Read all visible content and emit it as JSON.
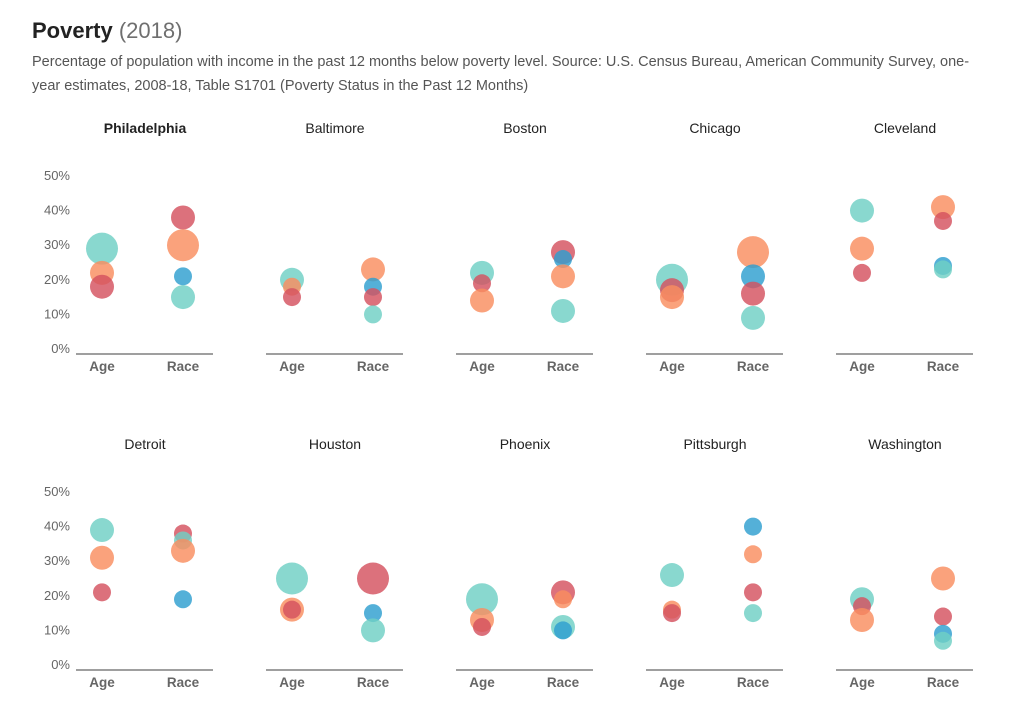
{
  "header": {
    "title": "Poverty",
    "title_year": "(2018)",
    "subtitle": "Percentage of population with income in the past 12 months below poverty level. Source: U.S. Census Bureau, American Community Survey, one-year estimates, 2008-18, Table S1701 (Poverty Status in the Past 12 Months)"
  },
  "colors": {
    "teal": "#6fcfc4",
    "orange": "#f98d5f",
    "red": "#d4525f",
    "blue": "#2e9fcf"
  },
  "chart_data": {
    "type": "scatter",
    "y_tick_labels": [
      "0%",
      "10%",
      "20%",
      "30%",
      "40%",
      "50%"
    ],
    "ylim": [
      0,
      50
    ],
    "categories": [
      "Age",
      "Race"
    ],
    "highlighted_panel": "Philadelphia",
    "panels": [
      {
        "city": "Philadelphia",
        "age": [
          {
            "color": "teal",
            "y": 29,
            "size": "large"
          },
          {
            "color": "orange",
            "y": 22,
            "size": "medium"
          },
          {
            "color": "red",
            "y": 18,
            "size": "medium"
          }
        ],
        "race": [
          {
            "color": "red",
            "y": 38,
            "size": "medium"
          },
          {
            "color": "orange",
            "y": 30,
            "size": "large"
          },
          {
            "color": "blue",
            "y": 21,
            "size": "small"
          },
          {
            "color": "teal",
            "y": 15,
            "size": "medium"
          }
        ]
      },
      {
        "city": "Baltimore",
        "age": [
          {
            "color": "teal",
            "y": 20,
            "size": "medium"
          },
          {
            "color": "orange",
            "y": 18,
            "size": "small"
          },
          {
            "color": "red",
            "y": 15,
            "size": "small"
          }
        ],
        "race": [
          {
            "color": "orange",
            "y": 23,
            "size": "medium"
          },
          {
            "color": "blue",
            "y": 18,
            "size": "small"
          },
          {
            "color": "red",
            "y": 15,
            "size": "small"
          },
          {
            "color": "teal",
            "y": 10,
            "size": "small"
          }
        ]
      },
      {
        "city": "Boston",
        "age": [
          {
            "color": "teal",
            "y": 22,
            "size": "medium"
          },
          {
            "color": "red",
            "y": 19,
            "size": "small"
          },
          {
            "color": "orange",
            "y": 14,
            "size": "medium"
          }
        ],
        "race": [
          {
            "color": "red",
            "y": 28,
            "size": "medium"
          },
          {
            "color": "blue",
            "y": 26,
            "size": "small"
          },
          {
            "color": "orange",
            "y": 21,
            "size": "medium"
          },
          {
            "color": "teal",
            "y": 11,
            "size": "medium"
          }
        ]
      },
      {
        "city": "Chicago",
        "age": [
          {
            "color": "teal",
            "y": 20,
            "size": "large"
          },
          {
            "color": "red",
            "y": 17,
            "size": "medium"
          },
          {
            "color": "orange",
            "y": 15,
            "size": "medium"
          }
        ],
        "race": [
          {
            "color": "orange",
            "y": 28,
            "size": "large"
          },
          {
            "color": "blue",
            "y": 21,
            "size": "medium"
          },
          {
            "color": "red",
            "y": 16,
            "size": "medium"
          },
          {
            "color": "teal",
            "y": 9,
            "size": "medium"
          }
        ]
      },
      {
        "city": "Cleveland",
        "age": [
          {
            "color": "teal",
            "y": 40,
            "size": "medium"
          },
          {
            "color": "orange",
            "y": 29,
            "size": "medium"
          },
          {
            "color": "red",
            "y": 22,
            "size": "small"
          }
        ],
        "race": [
          {
            "color": "orange",
            "y": 41,
            "size": "medium"
          },
          {
            "color": "red",
            "y": 37,
            "size": "small"
          },
          {
            "color": "blue",
            "y": 24,
            "size": "small"
          },
          {
            "color": "teal",
            "y": 23,
            "size": "small"
          }
        ]
      },
      {
        "city": "Detroit",
        "age": [
          {
            "color": "teal",
            "y": 39,
            "size": "medium"
          },
          {
            "color": "orange",
            "y": 31,
            "size": "medium"
          },
          {
            "color": "red",
            "y": 21,
            "size": "small"
          }
        ],
        "race": [
          {
            "color": "red",
            "y": 38,
            "size": "small"
          },
          {
            "color": "teal",
            "y": 36,
            "size": "small"
          },
          {
            "color": "orange",
            "y": 33,
            "size": "medium"
          },
          {
            "color": "blue",
            "y": 19,
            "size": "small"
          }
        ]
      },
      {
        "city": "Houston",
        "age": [
          {
            "color": "teal",
            "y": 25,
            "size": "large"
          },
          {
            "color": "orange",
            "y": 16,
            "size": "medium"
          },
          {
            "color": "red",
            "y": 16,
            "size": "small"
          }
        ],
        "race": [
          {
            "color": "red",
            "y": 25,
            "size": "large"
          },
          {
            "color": "blue",
            "y": 15,
            "size": "small"
          },
          {
            "color": "teal",
            "y": 10,
            "size": "medium"
          }
        ]
      },
      {
        "city": "Phoenix",
        "age": [
          {
            "color": "teal",
            "y": 19,
            "size": "large"
          },
          {
            "color": "orange",
            "y": 13,
            "size": "medium"
          },
          {
            "color": "red",
            "y": 11,
            "size": "small"
          }
        ],
        "race": [
          {
            "color": "red",
            "y": 21,
            "size": "medium"
          },
          {
            "color": "orange",
            "y": 19,
            "size": "small"
          },
          {
            "color": "teal",
            "y": 11,
            "size": "medium"
          },
          {
            "color": "blue",
            "y": 10,
            "size": "small"
          }
        ]
      },
      {
        "city": "Pittsburgh",
        "age": [
          {
            "color": "teal",
            "y": 26,
            "size": "medium"
          },
          {
            "color": "orange",
            "y": 16,
            "size": "small"
          },
          {
            "color": "red",
            "y": 15,
            "size": "small"
          }
        ],
        "race": [
          {
            "color": "blue",
            "y": 40,
            "size": "small"
          },
          {
            "color": "orange",
            "y": 32,
            "size": "small"
          },
          {
            "color": "red",
            "y": 21,
            "size": "small"
          },
          {
            "color": "teal",
            "y": 15,
            "size": "small"
          }
        ]
      },
      {
        "city": "Washington",
        "age": [
          {
            "color": "teal",
            "y": 19,
            "size": "medium"
          },
          {
            "color": "red",
            "y": 17,
            "size": "small"
          },
          {
            "color": "orange",
            "y": 13,
            "size": "medium"
          }
        ],
        "race": [
          {
            "color": "orange",
            "y": 25,
            "size": "medium"
          },
          {
            "color": "red",
            "y": 14,
            "size": "small"
          },
          {
            "color": "blue",
            "y": 9,
            "size": "small"
          },
          {
            "color": "teal",
            "y": 7,
            "size": "small"
          }
        ]
      }
    ]
  }
}
